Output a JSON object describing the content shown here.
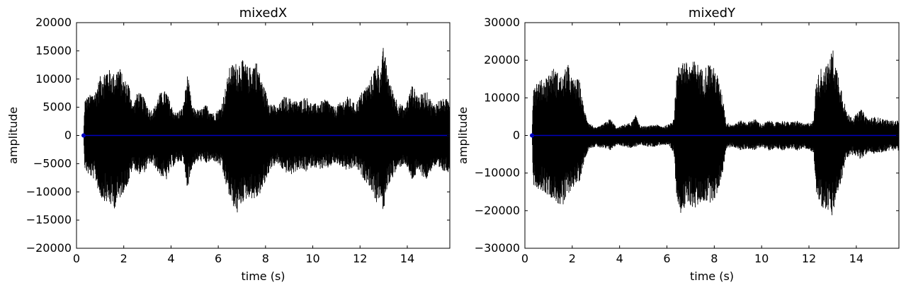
{
  "chart_data": [
    {
      "type": "line",
      "title": "mixedX",
      "xlabel": "time (s)",
      "ylabel": "amplitude",
      "xlim": [
        0,
        15.8
      ],
      "ylim": [
        -20000,
        20000
      ],
      "xticks": [
        0,
        2,
        4,
        6,
        8,
        10,
        12,
        14
      ],
      "yticks": [
        -20000,
        -15000,
        -10000,
        -5000,
        0,
        5000,
        10000,
        15000,
        20000
      ],
      "xtick_labels": [
        "0",
        "2",
        "4",
        "6",
        "8",
        "10",
        "12",
        "14"
      ],
      "ytick_labels": [
        "−20000",
        "−15000",
        "−10000",
        "−5000",
        "0",
        "5000",
        "10000",
        "15000",
        "20000"
      ],
      "grid": false,
      "series": [
        {
          "color": "#000000",
          "envelope_time": [
            0.3,
            0.35,
            0.5,
            0.8,
            1.0,
            1.3,
            1.6,
            1.8,
            2.0,
            2.2,
            2.4,
            2.6,
            2.9,
            3.1,
            3.3,
            3.5,
            3.8,
            4.0,
            4.2,
            4.5,
            4.7,
            4.9,
            5.2,
            5.5,
            5.8,
            6.1,
            6.3,
            6.5,
            6.8,
            7.0,
            7.3,
            7.6,
            7.9,
            8.2,
            8.5,
            8.8,
            9.1,
            9.4,
            9.7,
            10.0,
            10.3,
            10.6,
            10.9,
            11.2,
            11.5,
            11.8,
            12.1,
            12.4,
            12.7,
            12.9,
            13.0,
            13.1,
            13.3,
            13.6,
            13.9,
            14.2,
            14.5,
            14.8,
            15.1,
            15.4,
            15.8
          ],
          "envelope_upper": [
            0,
            6500,
            7000,
            8000,
            10500,
            12000,
            11000,
            12500,
            10000,
            9500,
            5500,
            8000,
            6500,
            4500,
            5000,
            7500,
            8000,
            5500,
            4000,
            5000,
            11000,
            5000,
            4500,
            5500,
            4000,
            5000,
            8500,
            12500,
            13000,
            13500,
            12000,
            13500,
            9000,
            6000,
            5000,
            7000,
            6500,
            6000,
            7000,
            5500,
            6000,
            6500,
            5000,
            6000,
            7000,
            5500,
            8000,
            9500,
            13000,
            12000,
            16500,
            13000,
            9000,
            6000,
            5000,
            9000,
            7000,
            8000,
            5500,
            6500,
            6500
          ],
          "envelope_lower": [
            0,
            -6000,
            -7000,
            -8000,
            -11000,
            -12000,
            -13000,
            -11500,
            -10000,
            -8500,
            -5500,
            -7000,
            -6500,
            -5000,
            -5500,
            -7000,
            -8000,
            -6000,
            -5000,
            -4500,
            -9500,
            -5500,
            -4500,
            -5000,
            -4500,
            -5500,
            -8500,
            -11500,
            -14000,
            -12000,
            -11000,
            -11500,
            -9500,
            -6000,
            -5000,
            -6500,
            -7000,
            -6000,
            -6500,
            -5500,
            -6000,
            -6000,
            -5000,
            -5500,
            -6500,
            -5500,
            -7500,
            -9000,
            -12000,
            -11000,
            -15000,
            -10000,
            -8000,
            -6000,
            -5000,
            -8000,
            -6500,
            -8000,
            -5500,
            -6500,
            -6500
          ]
        },
        {
          "color": "#0000bf",
          "x": [
            0.3,
            15.8
          ],
          "y": [
            0,
            0
          ]
        }
      ]
    },
    {
      "type": "line",
      "title": "mixedY",
      "xlabel": "time (s)",
      "ylabel": "amplitude",
      "xlim": [
        0,
        15.8
      ],
      "ylim": [
        -30000,
        30000
      ],
      "xticks": [
        0,
        2,
        4,
        6,
        8,
        10,
        12,
        14
      ],
      "yticks": [
        -30000,
        -20000,
        -10000,
        0,
        10000,
        20000,
        30000
      ],
      "xtick_labels": [
        "0",
        "2",
        "4",
        "6",
        "8",
        "10",
        "12",
        "14"
      ],
      "ytick_labels": [
        "−30000",
        "−20000",
        "−10000",
        "0",
        "10000",
        "20000",
        "30000"
      ],
      "grid": false,
      "series": [
        {
          "color": "#000000",
          "envelope_time": [
            0.3,
            0.35,
            0.5,
            0.8,
            1.2,
            1.6,
            1.8,
            2.0,
            2.3,
            2.5,
            2.7,
            3.0,
            3.3,
            3.6,
            3.9,
            4.2,
            4.5,
            4.7,
            4.9,
            5.2,
            5.5,
            5.8,
            6.1,
            6.3,
            6.4,
            6.6,
            6.9,
            7.2,
            7.5,
            7.8,
            8.1,
            8.4,
            8.5,
            8.8,
            9.1,
            9.4,
            9.7,
            10.0,
            10.3,
            10.6,
            10.9,
            11.2,
            11.5,
            11.8,
            12.2,
            12.3,
            12.5,
            12.8,
            13.0,
            13.1,
            13.3,
            13.6,
            13.9,
            14.2,
            14.5,
            14.8,
            15.1,
            15.4,
            15.8
          ],
          "envelope_upper": [
            0,
            14000,
            14500,
            15000,
            18000,
            15500,
            19500,
            15000,
            15000,
            7000,
            3500,
            2000,
            3000,
            4500,
            2000,
            3000,
            3500,
            5500,
            2500,
            2500,
            3000,
            2500,
            3000,
            5000,
            16000,
            21000,
            19000,
            20000,
            17500,
            19500,
            17000,
            9000,
            3500,
            3000,
            4000,
            3500,
            4500,
            3000,
            4000,
            3500,
            4000,
            3500,
            4000,
            3000,
            4000,
            14500,
            18000,
            19000,
            23500,
            20000,
            15000,
            6000,
            5000,
            7000,
            4500,
            5000,
            4500,
            4000,
            4000
          ],
          "envelope_lower": [
            0,
            -13000,
            -14000,
            -15000,
            -17000,
            -19500,
            -16000,
            -14000,
            -12500,
            -7000,
            -3500,
            -3000,
            -3500,
            -4000,
            -2500,
            -3000,
            -3500,
            -3000,
            -2500,
            -3000,
            -3000,
            -2500,
            -3000,
            -5000,
            -16000,
            -21000,
            -18500,
            -19500,
            -17500,
            -18000,
            -16500,
            -8500,
            -3500,
            -3000,
            -4000,
            -3500,
            -4000,
            -3000,
            -4000,
            -3500,
            -4000,
            -3500,
            -4000,
            -3500,
            -4500,
            -15000,
            -19000,
            -20000,
            -22500,
            -18000,
            -14000,
            -6000,
            -5000,
            -6500,
            -4500,
            -5000,
            -4500,
            -4000,
            -4000
          ]
        },
        {
          "color": "#0000bf",
          "x": [
            0.3,
            15.8
          ],
          "y": [
            0,
            0
          ]
        }
      ]
    }
  ]
}
